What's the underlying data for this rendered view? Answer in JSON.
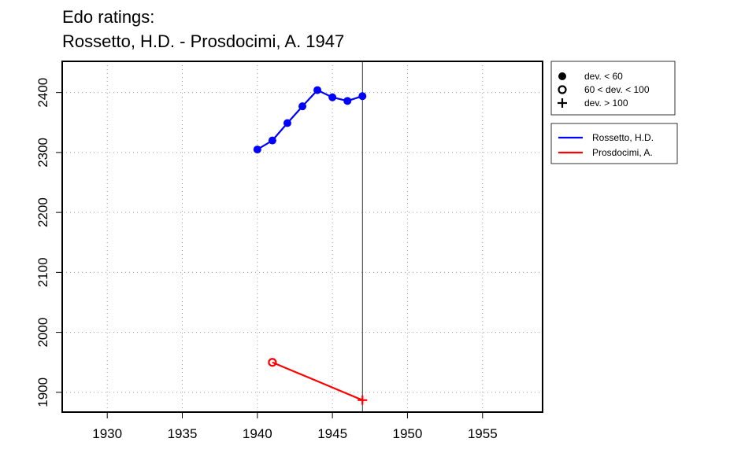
{
  "chart_data": {
    "type": "line",
    "title": "Edo ratings:",
    "subtitle": "Rossetto, H.D. - Prosdocimi, A. 1947",
    "xlabel": "",
    "ylabel": "",
    "xlim": [
      1927,
      1959
    ],
    "ylim": [
      1867,
      2452
    ],
    "x_ticks": [
      1930,
      1935,
      1940,
      1945,
      1950,
      1955
    ],
    "y_ticks": [
      1900,
      2000,
      2100,
      2200,
      2300,
      2400
    ],
    "grid": true,
    "reference_line_x": 1947,
    "series": [
      {
        "name": "Rossetto, H.D.",
        "color": "#0000ff",
        "points": [
          {
            "x": 1940,
            "y": 2305,
            "marker": "dev. < 60"
          },
          {
            "x": 1941,
            "y": 2320,
            "marker": "dev. < 60"
          },
          {
            "x": 1942,
            "y": 2349,
            "marker": "dev. < 60"
          },
          {
            "x": 1943,
            "y": 2377,
            "marker": "dev. < 60"
          },
          {
            "x": 1944,
            "y": 2404,
            "marker": "dev. < 60"
          },
          {
            "x": 1945,
            "y": 2392,
            "marker": "dev. < 60"
          },
          {
            "x": 1946,
            "y": 2386,
            "marker": "dev. < 60"
          },
          {
            "x": 1947,
            "y": 2394,
            "marker": "dev. < 60"
          }
        ]
      },
      {
        "name": "Prosdocimi, A.",
        "color": "#ff0000",
        "points": [
          {
            "x": 1941,
            "y": 1950,
            "marker": "60 < dev. < 100"
          },
          {
            "x": 1947,
            "y": 1887,
            "marker": "dev. > 100"
          }
        ]
      }
    ],
    "marker_legend": [
      {
        "symbol": "filled-circle",
        "label": "dev. < 60"
      },
      {
        "symbol": "open-circle",
        "label": "60 < dev. < 100"
      },
      {
        "symbol": "plus",
        "label": "dev. > 100"
      }
    ],
    "legend_placement": "right"
  }
}
